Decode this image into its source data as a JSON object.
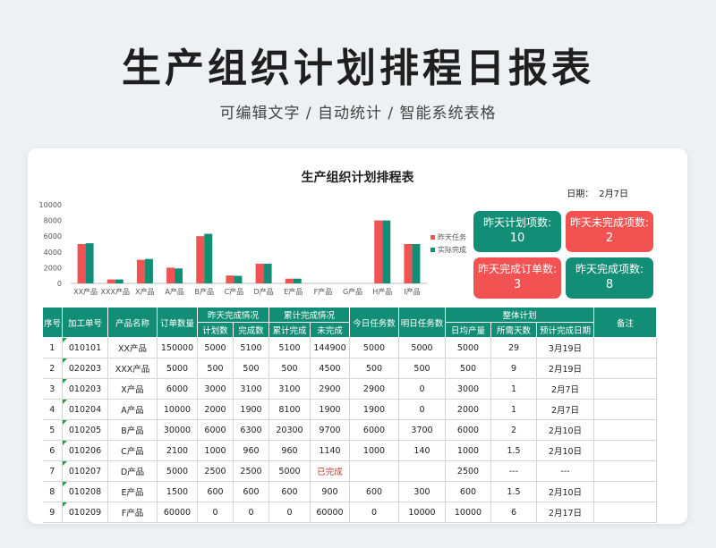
{
  "page": {
    "title": "生产组织计划排程日报表",
    "subtitle": "可编辑文字 / 自动统计 / 智能系统表格"
  },
  "sheet": {
    "title": "生产组织计划排程表",
    "date_label": "日期：",
    "date_value": "2月7日"
  },
  "kpis": [
    {
      "label": "昨天计划项数:",
      "value": "10",
      "color": "#138e76"
    },
    {
      "label": "昨天未完成项数:",
      "value": "2",
      "color": "#f25252"
    },
    {
      "label": "昨天完成订单数:",
      "value": "3",
      "color": "#f25252"
    },
    {
      "label": "昨天完成项数:",
      "value": "8",
      "color": "#138e76"
    }
  ],
  "chart_data": {
    "type": "bar",
    "categories": [
      "XX产品",
      "XXX产品",
      "X产品",
      "A产品",
      "B产品",
      "C产品",
      "D产品",
      "E产品",
      "F产品",
      "G产品",
      "H产品",
      "I产品"
    ],
    "series": [
      {
        "name": "昨天任务",
        "color": "#f25252",
        "values": [
          5000,
          500,
          3000,
          2000,
          6000,
          1000,
          2500,
          600,
          0,
          0,
          8000,
          5000
        ]
      },
      {
        "name": "实际完成",
        "color": "#138e76",
        "values": [
          5100,
          500,
          3100,
          1900,
          6300,
          960,
          2500,
          600,
          0,
          0,
          8000,
          5000
        ]
      }
    ],
    "y_ticks": [
      "0",
      "2000",
      "4000",
      "6000",
      "8000",
      "10000"
    ],
    "ylim": [
      0,
      10000
    ],
    "legend": "right"
  },
  "table": {
    "headers": {
      "seq": "序号",
      "order_no": "加工单号",
      "product": "产品名称",
      "order_qty": "订单数量",
      "yesterday_group": "昨天完成情况",
      "plan": "计划数",
      "done": "完成数",
      "cumulative_group": "累计完成情况",
      "cum_done": "累计完成",
      "undone": "未完成",
      "today_task": "今日任务数",
      "tomorrow_task": "明日任务数",
      "overall_group": "整体计划",
      "daily_output": "日均产量",
      "days_needed": "所需天数",
      "est_date": "预计完成日期",
      "remark": "备注"
    },
    "rows": [
      [
        "1",
        "010101",
        "XX产品",
        "150000",
        "5000",
        "5100",
        "5100",
        "144900",
        "5000",
        "5000",
        "5000",
        "29",
        "3月19日",
        ""
      ],
      [
        "2",
        "020203",
        "XXX产品",
        "5000",
        "500",
        "500",
        "500",
        "4500",
        "500",
        "500",
        "500",
        "9",
        "2月19日",
        ""
      ],
      [
        "3",
        "010203",
        "X产品",
        "6000",
        "3000",
        "3100",
        "3100",
        "2900",
        "2900",
        "0",
        "3000",
        "1",
        "2月7日",
        ""
      ],
      [
        "4",
        "010204",
        "A产品",
        "10000",
        "2000",
        "1900",
        "8100",
        "1900",
        "1900",
        "0",
        "2000",
        "1",
        "2月7日",
        ""
      ],
      [
        "5",
        "010205",
        "B产品",
        "30000",
        "6000",
        "6300",
        "20300",
        "9700",
        "6000",
        "3700",
        "6000",
        "2",
        "2月10日",
        ""
      ],
      [
        "6",
        "010206",
        "C产品",
        "2100",
        "1000",
        "960",
        "960",
        "1140",
        "1000",
        "140",
        "1000",
        "1.5",
        "2月10日",
        ""
      ],
      [
        "7",
        "010207",
        "D产品",
        "5000",
        "2500",
        "2500",
        "5000",
        "已完成",
        "",
        "",
        "2500",
        "---",
        "---",
        ""
      ],
      [
        "8",
        "010208",
        "E产品",
        "1500",
        "600",
        "600",
        "600",
        "900",
        "600",
        "300",
        "600",
        "1.5",
        "2月10日",
        ""
      ],
      [
        "9",
        "010209",
        "F产品",
        "60000",
        "0",
        "0",
        "0",
        "60000",
        "0",
        "10000",
        "10000",
        "6",
        "2月17日",
        ""
      ]
    ]
  }
}
